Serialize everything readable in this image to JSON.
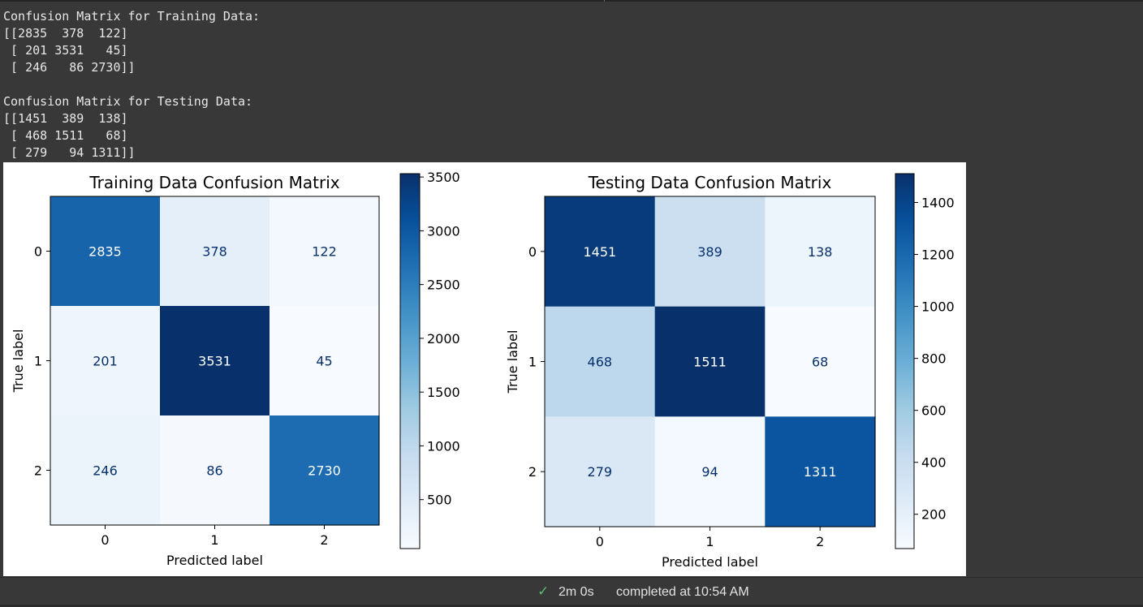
{
  "output": {
    "lines": [
      "Confusion Matrix for Training Data:",
      "[[2835  378  122]",
      " [ 201 3531   45]",
      " [ 246   86 2730]]",
      "",
      "Confusion Matrix for Testing Data:",
      "[[1451  389  138]",
      " [ 468 1511   68]",
      " [ 279   94 1311]]"
    ]
  },
  "status": {
    "icon": "check-icon",
    "check_color": "#5bb974",
    "duration": "2m 0s",
    "completed": "completed at 10:54 AM"
  },
  "chart_data": [
    {
      "type": "heatmap",
      "title": "Training Data Confusion Matrix",
      "xlabel": "Predicted label",
      "ylabel": "True label",
      "x_ticks": [
        "0",
        "1",
        "2"
      ],
      "y_ticks": [
        "0",
        "1",
        "2"
      ],
      "values": [
        [
          2835,
          378,
          122
        ],
        [
          201,
          3531,
          45
        ],
        [
          246,
          86,
          2730
        ]
      ],
      "colormap": "Blues",
      "colorbar": {
        "min": 45,
        "max": 3531,
        "ticks": [
          500,
          1000,
          1500,
          2000,
          2500,
          3000,
          3500
        ]
      }
    },
    {
      "type": "heatmap",
      "title": "Testing Data Confusion Matrix",
      "xlabel": "Predicted label",
      "ylabel": "True label",
      "x_ticks": [
        "0",
        "1",
        "2"
      ],
      "y_ticks": [
        "0",
        "1",
        "2"
      ],
      "values": [
        [
          1451,
          389,
          138
        ],
        [
          468,
          1511,
          68
        ],
        [
          279,
          94,
          1311
        ]
      ],
      "colormap": "Blues",
      "colorbar": {
        "min": 68,
        "max": 1511,
        "ticks": [
          200,
          400,
          600,
          800,
          1000,
          1200,
          1400
        ]
      }
    }
  ]
}
